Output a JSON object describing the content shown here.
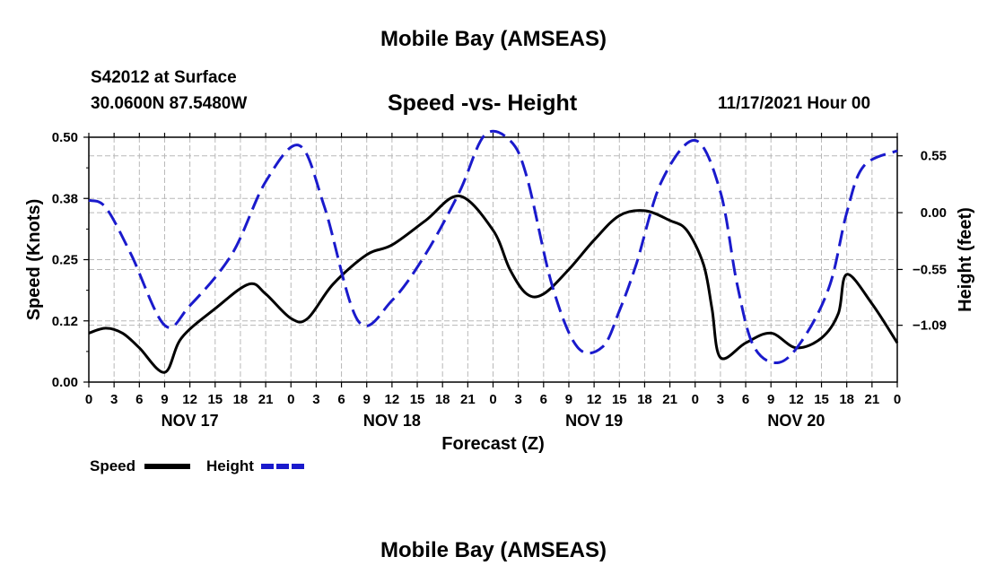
{
  "header": {
    "title": "Mobile Bay (AMSEAS)",
    "station_id": "S42012 at Surface",
    "station_coords": "30.0600N  87.5480W",
    "subtitle": "Speed -vs- Height",
    "run_time": "11/17/2021 Hour 00"
  },
  "footer": {
    "title": "Mobile Bay (AMSEAS)"
  },
  "chart_data": {
    "type": "line",
    "title": "Speed -vs- Height",
    "xlabel": "Forecast (Z)",
    "ylabel": "Speed (Knots)",
    "y2label": "Height (feet)",
    "xlim": [
      0,
      96
    ],
    "ylim": [
      0,
      0.5
    ],
    "y2lim": [
      -1.64,
      0.73
    ],
    "grid": true,
    "x_ticks": [
      0,
      3,
      6,
      9,
      12,
      15,
      18,
      21,
      24,
      27,
      30,
      33,
      36,
      39,
      42,
      45,
      48,
      51,
      54,
      57,
      60,
      63,
      66,
      69,
      72,
      75,
      78,
      81,
      84,
      87,
      90,
      93,
      96
    ],
    "x_tick_labels": [
      "0",
      "3",
      "6",
      "9",
      "12",
      "15",
      "18",
      "21",
      "0",
      "3",
      "6",
      "9",
      "12",
      "15",
      "18",
      "21",
      "0",
      "3",
      "6",
      "9",
      "12",
      "15",
      "18",
      "21",
      "0",
      "3",
      "6",
      "9",
      "12",
      "15",
      "18",
      "21",
      "0"
    ],
    "day_labels": [
      {
        "x": 12,
        "label": "NOV 17"
      },
      {
        "x": 36,
        "label": "NOV 18"
      },
      {
        "x": 60,
        "label": "NOV 19"
      },
      {
        "x": 84,
        "label": "NOV 20"
      }
    ],
    "y_ticks": [
      0.0,
      0.125,
      0.25,
      0.375,
      0.5
    ],
    "y_tick_labels": [
      "0.00",
      "0.12",
      "0.25",
      "0.38",
      "0.50"
    ],
    "y2_ticks": [
      0.55,
      0.0,
      -0.55,
      -1.09
    ],
    "y2_tick_labels": [
      "0.55",
      "0.00",
      "−0.55",
      "−1.09"
    ],
    "legend": [
      {
        "name": "Speed",
        "color": "#000000",
        "dash": "solid"
      },
      {
        "name": "Height",
        "color": "#1a1acc",
        "dash": "dashed"
      }
    ],
    "legend_position": "bottom-left",
    "series": [
      {
        "name": "Speed",
        "axis": "left",
        "color": "#000000",
        "dash": "solid",
        "x": [
          0,
          2,
          4,
          6,
          9,
          11,
          15,
          19,
          21,
          24,
          26,
          29,
          33,
          36,
          40,
          44,
          48,
          50,
          52,
          54,
          57,
          60,
          63,
          66,
          69,
          71,
          73,
          74,
          75,
          78,
          81,
          84,
          87,
          89,
          90,
          93,
          96
        ],
        "values": [
          0.1,
          0.11,
          0.1,
          0.07,
          0.02,
          0.09,
          0.15,
          0.2,
          0.18,
          0.13,
          0.13,
          0.2,
          0.26,
          0.28,
          0.33,
          0.38,
          0.31,
          0.23,
          0.18,
          0.18,
          0.23,
          0.29,
          0.34,
          0.35,
          0.33,
          0.31,
          0.24,
          0.15,
          0.05,
          0.08,
          0.1,
          0.07,
          0.09,
          0.14,
          0.22,
          0.16,
          0.08
        ]
      },
      {
        "name": "Height",
        "axis": "right",
        "color": "#1a1acc",
        "dash": "dashed",
        "x": [
          0,
          2,
          5,
          9,
          12,
          17,
          21,
          25,
          28,
          32,
          36,
          40,
          44,
          47,
          50,
          52,
          55,
          58,
          61,
          63,
          65,
          68,
          72,
          75,
          77,
          79,
          82,
          85,
          88,
          90,
          92,
          96
        ],
        "values": [
          0.12,
          0.05,
          -0.4,
          -1.09,
          -0.9,
          -0.4,
          0.3,
          0.65,
          0.05,
          -1.05,
          -0.85,
          -0.4,
          0.2,
          0.75,
          0.7,
          0.35,
          -0.7,
          -1.3,
          -1.3,
          -0.95,
          -0.5,
          0.3,
          0.7,
          0.2,
          -0.7,
          -1.3,
          -1.45,
          -1.2,
          -0.7,
          0.0,
          0.45,
          0.6
        ]
      }
    ]
  }
}
